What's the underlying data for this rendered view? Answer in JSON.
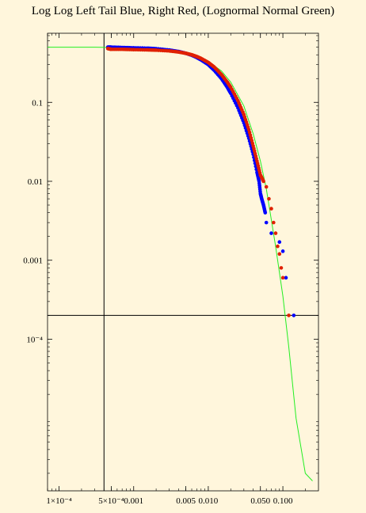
{
  "chart_data": {
    "type": "scatter",
    "title": "Log Log Left Tail Blue, Right Red, (Lognormal Normal Green)",
    "xlabel": "",
    "ylabel": "",
    "x_scale": "log",
    "y_scale": "log",
    "xlim": [
      7e-05,
      0.3
    ],
    "ylim": [
      1.2e-06,
      0.75
    ],
    "grid": false,
    "x_ticks": [
      {
        "value": 0.0001,
        "label": "1×10⁻⁴"
      },
      {
        "value": 0.0005,
        "label": "5×10⁻⁴"
      },
      {
        "value": 0.001,
        "label": "0.001"
      },
      {
        "value": 0.005,
        "label": "0.005"
      },
      {
        "value": 0.01,
        "label": "0.010"
      },
      {
        "value": 0.05,
        "label": "0.050"
      },
      {
        "value": 0.1,
        "label": "0.100"
      }
    ],
    "y_ticks": [
      {
        "value": 0.1,
        "label": "0.1"
      },
      {
        "value": 0.01,
        "label": "0.01"
      },
      {
        "value": 0.001,
        "label": "0.001"
      },
      {
        "value": 0.0001,
        "label": "10⁻⁴"
      }
    ],
    "reference_lines": {
      "vertical_x": 0.0004,
      "horizontal_y": 0.0002
    },
    "series": [
      {
        "color": "#0000ff",
        "style": "points",
        "points": [
          [
            0.00045,
            0.5
          ],
          [
            0.0005,
            0.5
          ],
          [
            0.0007,
            0.495
          ],
          [
            0.001,
            0.49
          ],
          [
            0.0015,
            0.485
          ],
          [
            0.002,
            0.478
          ],
          [
            0.003,
            0.46
          ],
          [
            0.004,
            0.44
          ],
          [
            0.005,
            0.418
          ],
          [
            0.006,
            0.395
          ],
          [
            0.007,
            0.37
          ],
          [
            0.008,
            0.345
          ],
          [
            0.01,
            0.3
          ],
          [
            0.012,
            0.255
          ],
          [
            0.015,
            0.2
          ],
          [
            0.018,
            0.155
          ],
          [
            0.02,
            0.13
          ],
          [
            0.025,
            0.085
          ],
          [
            0.03,
            0.055
          ],
          [
            0.035,
            0.035
          ],
          [
            0.04,
            0.022
          ],
          [
            0.045,
            0.013
          ],
          [
            0.048,
            0.01
          ],
          [
            0.05,
            0.007
          ],
          [
            0.052,
            0.006
          ],
          [
            0.055,
            0.005
          ],
          [
            0.058,
            0.004
          ],
          [
            0.06,
            0.003
          ],
          [
            0.07,
            0.0022
          ],
          [
            0.09,
            0.0017
          ],
          [
            0.1,
            0.0013
          ],
          [
            0.11,
            0.0006
          ],
          [
            0.14,
            0.0002
          ]
        ]
      },
      {
        "color": "#e02000",
        "style": "points",
        "points": [
          [
            0.00045,
            0.48
          ],
          [
            0.0005,
            0.47
          ],
          [
            0.0007,
            0.47
          ],
          [
            0.001,
            0.465
          ],
          [
            0.0015,
            0.462
          ],
          [
            0.002,
            0.458
          ],
          [
            0.003,
            0.448
          ],
          [
            0.004,
            0.434
          ],
          [
            0.005,
            0.418
          ],
          [
            0.006,
            0.4
          ],
          [
            0.007,
            0.38
          ],
          [
            0.008,
            0.36
          ],
          [
            0.01,
            0.32
          ],
          [
            0.012,
            0.28
          ],
          [
            0.015,
            0.225
          ],
          [
            0.018,
            0.18
          ],
          [
            0.02,
            0.155
          ],
          [
            0.025,
            0.105
          ],
          [
            0.03,
            0.07
          ],
          [
            0.035,
            0.045
          ],
          [
            0.04,
            0.028
          ],
          [
            0.045,
            0.018
          ],
          [
            0.05,
            0.012
          ],
          [
            0.055,
            0.01
          ],
          [
            0.06,
            0.0085
          ],
          [
            0.065,
            0.006
          ],
          [
            0.07,
            0.0045
          ],
          [
            0.075,
            0.003
          ],
          [
            0.08,
            0.0022
          ],
          [
            0.085,
            0.0015
          ],
          [
            0.09,
            0.0012
          ],
          [
            0.095,
            0.0008
          ],
          [
            0.1,
            0.0006
          ],
          [
            0.12,
            0.0002
          ]
        ]
      },
      {
        "color": "#22ee22",
        "style": "line",
        "points": [
          [
            7e-05,
            0.5
          ],
          [
            0.0003,
            0.5
          ],
          [
            0.001,
            0.49
          ],
          [
            0.002,
            0.475
          ],
          [
            0.003,
            0.46
          ],
          [
            0.005,
            0.425
          ],
          [
            0.008,
            0.365
          ],
          [
            0.01,
            0.33
          ],
          [
            0.015,
            0.25
          ],
          [
            0.02,
            0.18
          ],
          [
            0.03,
            0.09
          ],
          [
            0.04,
            0.04
          ],
          [
            0.05,
            0.018
          ],
          [
            0.06,
            0.008
          ],
          [
            0.08,
            0.0015
          ],
          [
            0.1,
            0.00035
          ],
          [
            0.12,
            8e-05
          ],
          [
            0.15,
            1e-05
          ],
          [
            0.2,
            2e-06
          ],
          [
            0.25,
            1.6e-06
          ]
        ]
      }
    ]
  }
}
